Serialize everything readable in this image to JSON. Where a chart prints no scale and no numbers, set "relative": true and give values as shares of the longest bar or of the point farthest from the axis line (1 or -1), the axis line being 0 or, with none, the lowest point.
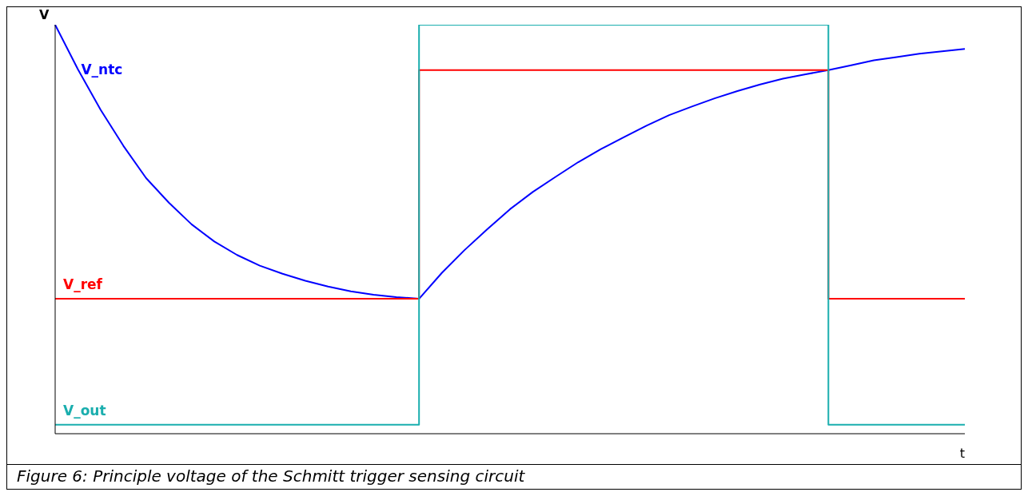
{
  "chart_data": {
    "type": "line",
    "relative": true,
    "xlabel": "t",
    "ylabel": "V",
    "grid": false,
    "legend": false,
    "marker": "none",
    "categories": [
      null,
      null,
      null,
      null,
      null,
      null,
      null,
      null,
      null,
      null,
      null,
      null,
      null,
      null,
      null,
      null,
      null,
      null,
      null,
      null,
      null,
      null,
      null,
      null,
      null,
      null,
      null,
      null,
      null,
      null,
      null,
      null,
      null,
      null,
      null,
      null,
      null,
      null,
      null,
      null,
      null
    ],
    "series": [
      {
        "name": "V_ntc",
        "type": "line",
        "color": "#0000ff",
        "values": [
          1.0,
          0.891,
          0.792,
          0.704,
          0.625,
          0.565,
          0.512,
          0.47,
          0.437,
          0.411,
          0.391,
          0.374,
          0.36,
          0.348,
          0.34,
          0.334,
          0.33,
          0.393,
          0.449,
          0.5,
          0.549,
          0.591,
          0.628,
          0.664,
          0.696,
          0.725,
          0.753,
          0.779,
          0.8,
          0.82,
          0.838,
          0.854,
          0.868,
          0.879,
          0.889,
          0.901,
          0.913,
          0.921,
          0.929,
          0.935,
          0.941
        ]
      },
      {
        "name": "V_ref",
        "type": "step",
        "color": "#ff0000",
        "values": [
          0.33,
          0.33,
          0.33,
          0.33,
          0.33,
          0.33,
          0.33,
          0.33,
          0.33,
          0.33,
          0.33,
          0.33,
          0.33,
          0.33,
          0.33,
          0.33,
          0.889,
          0.889,
          0.889,
          0.889,
          0.889,
          0.889,
          0.889,
          0.889,
          0.889,
          0.889,
          0.889,
          0.889,
          0.889,
          0.889,
          0.889,
          0.889,
          0.889,
          0.889,
          0.33,
          0.33,
          0.33,
          0.33,
          0.33,
          0.33,
          0.33
        ]
      },
      {
        "name": "V_out",
        "type": "step",
        "color": "#1aaeae",
        "values": [
          0.022,
          0.022,
          0.022,
          0.022,
          0.022,
          0.022,
          0.022,
          0.022,
          0.022,
          0.022,
          0.022,
          0.022,
          0.022,
          0.022,
          0.022,
          0.022,
          1,
          1,
          1,
          1,
          1,
          1,
          1,
          1,
          1,
          1,
          1,
          1,
          1,
          1,
          1,
          1,
          1,
          1,
          0.022,
          0.022,
          0.022,
          0.022,
          0.022,
          0.022,
          0.022
        ]
      }
    ],
    "annotations": [
      "Figure 6: Principle voltage of the Schmitt trigger sensing circuit"
    ]
  }
}
